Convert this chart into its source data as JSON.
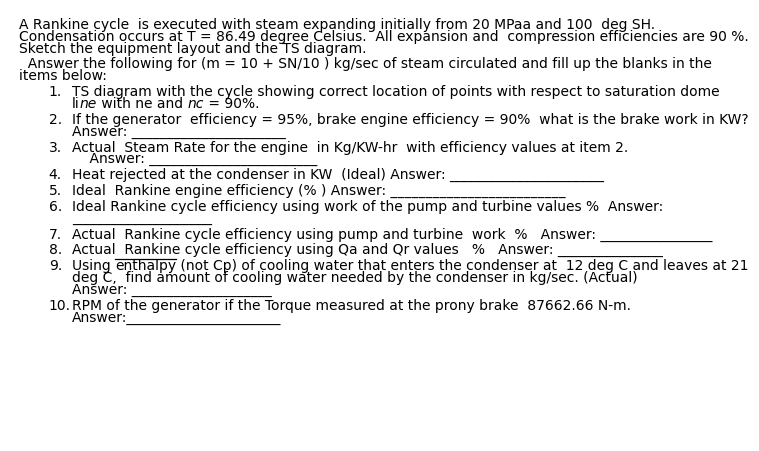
{
  "background_color": "#ffffff",
  "title_lines": [
    "A Rankine cycle  is executed with steam expanding initially from 20 MPaa and 100  deg SH.",
    "Condensation occurs at T = 86.49 degree Celsius.  All expansion and  compression efficiencies are 90 %.",
    "Sketch the equipment layout and the TS diagram."
  ],
  "intro_lines": [
    "  Answer the following for (m = 10 + SN/10 ) kg/sec of steam circulated and fill up the blanks in the",
    "items below:"
  ],
  "items": [
    {
      "num": "1.",
      "lines": [
        "TS diagram with the cycle showing correct location of points with respect to saturation dome",
        "line with ne and nc = 90%."
      ],
      "italic_words": [
        "ne",
        "nc"
      ],
      "answer_line": null,
      "underline_word": null
    },
    {
      "num": "2.",
      "lines": [
        "If the generator  efficiency = 95%, brake engine efficiency = 90%  what is the brake work in KW?"
      ],
      "italic_words": [],
      "answer_line": "Answer: ______________________",
      "underline_word": null
    },
    {
      "num": "3.",
      "lines": [
        "Actual  Steam Rate for the engine  in Kg/KW-hr  with efficiency values at item 2."
      ],
      "italic_words": [],
      "answer_line": "    Answer: ________________________",
      "underline_word": null
    },
    {
      "num": "4.",
      "lines": [
        "Heat rejected at the condenser in KW  (Ideal) Answer: ______________________"
      ],
      "italic_words": [],
      "answer_line": null,
      "underline_word": null
    },
    {
      "num": "5.",
      "lines": [
        "Ideal  Rankine engine efficiency (% ) Answer: _________________________"
      ],
      "italic_words": [],
      "answer_line": null,
      "underline_word": null
    },
    {
      "num": "6.",
      "lines": [
        "Ideal Rankine cycle efficiency using work of the pump and turbine values %  Answer:"
      ],
      "italic_words": [],
      "answer_line": "____________________",
      "underline_word": null
    },
    {
      "num": "7.",
      "lines": [
        "Actual  Rankine cycle efficiency using pump and turbine  work  %   Answer: ________________"
      ],
      "italic_words": [],
      "answer_line": null,
      "underline_word": null
    },
    {
      "num": "8.",
      "lines": [
        "Actual  Rankine cycle efficiency using Qa and Qr values   %   Answer: _______________"
      ],
      "italic_words": [],
      "answer_line": null,
      "underline_word": null
    },
    {
      "num": "9.",
      "lines": [
        "Using enthalpy (not Cp) of cooling water that enters the condenser at  12 deg C and leaves at 21",
        "deg C,  find amount of cooling water needed by the condenser in kg/sec. (Actual)",
        "Answer: ____________________"
      ],
      "italic_words": [],
      "answer_line": null,
      "underline_word": "enthalpy"
    },
    {
      "num": "10.",
      "lines": [
        "RPM of the generator if the Torque measured at the prony brake  87662.66 N-m.",
        "Answer:______________________"
      ],
      "italic_words": [],
      "answer_line": null,
      "underline_word": null
    }
  ]
}
